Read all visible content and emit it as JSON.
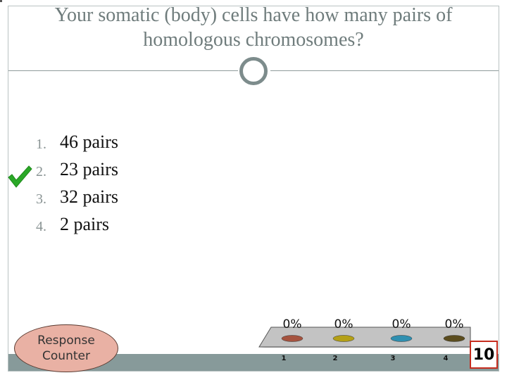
{
  "slide": {
    "title_line1": "Your somatic (body) cells have how many pairs of",
    "title_line2": "homologous chromosomes?"
  },
  "answers": [
    {
      "number": "1.",
      "text": "46 pairs",
      "correct": false
    },
    {
      "number": "2.",
      "text": "23 pairs",
      "correct": true
    },
    {
      "number": "3.",
      "text": "32 pairs",
      "correct": false
    },
    {
      "number": "4.",
      "text": "2 pairs",
      "correct": false
    }
  ],
  "response_counter": {
    "line1": "Response",
    "line2": "Counter"
  },
  "timer": {
    "value": "10"
  },
  "colors": {
    "title": "#6f7c7c",
    "checkmark": "#2aa827",
    "counter_fill": "#e9b1a4",
    "bar": "#879a9a",
    "timer_border": "#c62c1e"
  },
  "chart_data": {
    "type": "bar",
    "categories": [
      "1",
      "2",
      "3",
      "4"
    ],
    "values": [
      0,
      0,
      0,
      0
    ],
    "data_labels": [
      "0%",
      "0%",
      "0%",
      "0%"
    ],
    "ylim": [
      0,
      100
    ],
    "colors": [
      "#a5533f",
      "#b4a017",
      "#2f8fb0",
      "#5b4d1f"
    ],
    "title": "",
    "xlabel": "",
    "ylabel": ""
  }
}
